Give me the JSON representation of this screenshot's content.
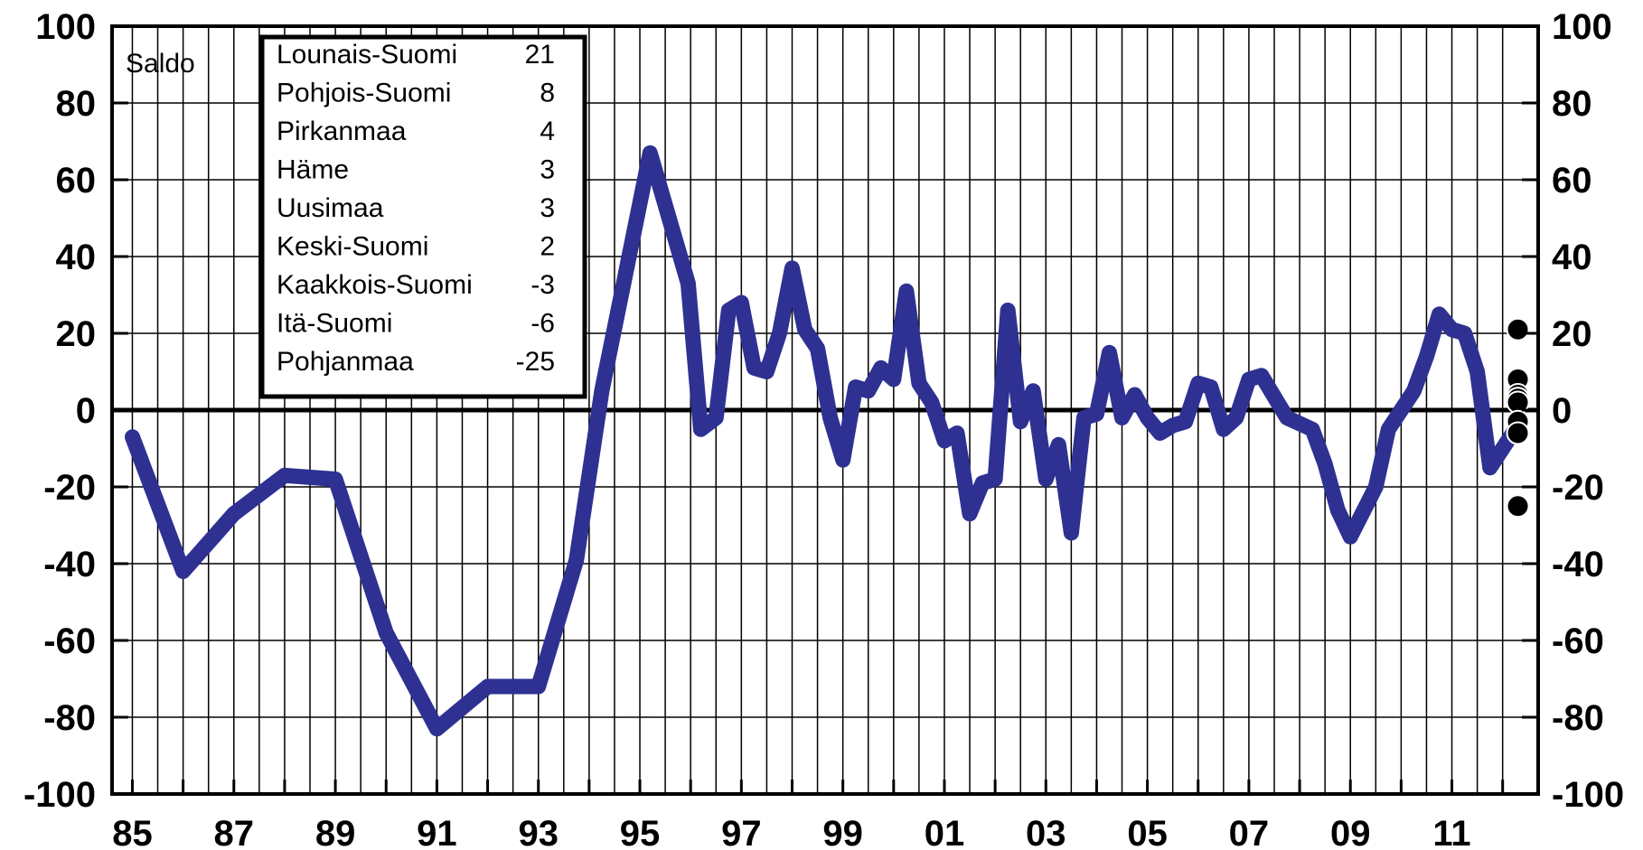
{
  "chart_data": {
    "type": "line",
    "y_unit_label": "Saldo",
    "ylim": [
      -100,
      100
    ],
    "y_ticks": [
      "100",
      "80",
      "60",
      "40",
      "20",
      "0",
      "-20",
      "-40",
      "-60",
      "-80",
      "-100"
    ],
    "x_tick_labels": [
      "85",
      "87",
      "89",
      "91",
      "93",
      "95",
      "97",
      "99",
      "01",
      "03",
      "05",
      "07",
      "09",
      "11"
    ],
    "grid": true,
    "line_color": "#2e3192",
    "series": [
      {
        "points": [
          [
            1985.0,
            -7
          ],
          [
            1986.0,
            -42
          ],
          [
            1987.0,
            -27
          ],
          [
            1988.0,
            -17
          ],
          [
            1989.0,
            -18
          ],
          [
            1990.0,
            -58
          ],
          [
            1991.0,
            -83
          ],
          [
            1992.0,
            -72
          ],
          [
            1993.0,
            -72
          ],
          [
            1993.75,
            -39
          ],
          [
            1994.25,
            5
          ],
          [
            1995.2,
            67
          ],
          [
            1995.95,
            33
          ],
          [
            1996.2,
            -5
          ],
          [
            1996.5,
            -2
          ],
          [
            1996.75,
            26
          ],
          [
            1997.0,
            28
          ],
          [
            1997.25,
            11
          ],
          [
            1997.5,
            10
          ],
          [
            1997.75,
            20
          ],
          [
            1998.0,
            37
          ],
          [
            1998.25,
            21
          ],
          [
            1998.5,
            16
          ],
          [
            1998.75,
            -2
          ],
          [
            1999.0,
            -13
          ],
          [
            1999.25,
            6
          ],
          [
            1999.5,
            5
          ],
          [
            1999.75,
            11
          ],
          [
            2000.0,
            8
          ],
          [
            2000.25,
            31
          ],
          [
            2000.5,
            7
          ],
          [
            2000.75,
            2
          ],
          [
            2001.0,
            -8
          ],
          [
            2001.25,
            -6
          ],
          [
            2001.5,
            -27
          ],
          [
            2001.75,
            -19
          ],
          [
            2002.0,
            -18
          ],
          [
            2002.25,
            26
          ],
          [
            2002.5,
            -3
          ],
          [
            2002.75,
            5
          ],
          [
            2003.0,
            -18
          ],
          [
            2003.25,
            -9
          ],
          [
            2003.5,
            -32
          ],
          [
            2003.75,
            -2
          ],
          [
            2004.0,
            -1
          ],
          [
            2004.25,
            15
          ],
          [
            2004.5,
            -2
          ],
          [
            2004.75,
            4
          ],
          [
            2005.0,
            -2
          ],
          [
            2005.25,
            -6
          ],
          [
            2005.5,
            -4
          ],
          [
            2005.75,
            -3
          ],
          [
            2006.0,
            7
          ],
          [
            2006.25,
            6
          ],
          [
            2006.5,
            -5
          ],
          [
            2006.75,
            -2
          ],
          [
            2007.0,
            8
          ],
          [
            2007.25,
            9
          ],
          [
            2007.75,
            -2
          ],
          [
            2008.25,
            -5
          ],
          [
            2008.5,
            -14
          ],
          [
            2008.75,
            -26
          ],
          [
            2009.0,
            -33
          ],
          [
            2009.5,
            -20
          ],
          [
            2009.75,
            -5
          ],
          [
            2010.0,
            0
          ],
          [
            2010.25,
            5
          ],
          [
            2010.5,
            14
          ],
          [
            2010.75,
            25
          ],
          [
            2011.0,
            21
          ],
          [
            2011.25,
            20
          ],
          [
            2011.5,
            10
          ],
          [
            2011.75,
            -15
          ],
          [
            2012.25,
            -5
          ]
        ]
      }
    ],
    "regional_points_x": 2012.3,
    "dot_color": "#000000",
    "legend": {
      "position": "top-left",
      "entries": [
        {
          "name": "Lounais-Suomi",
          "value": "21"
        },
        {
          "name": "Pohjois-Suomi",
          "value": "8"
        },
        {
          "name": "Pirkanmaa",
          "value": "4"
        },
        {
          "name": "Häme",
          "value": "3"
        },
        {
          "name": "Uusimaa",
          "value": "3"
        },
        {
          "name": "Keski-Suomi",
          "value": "2"
        },
        {
          "name": "Kaakkois-Suomi",
          "value": "-3"
        },
        {
          "name": "Itä-Suomi",
          "value": "-6"
        },
        {
          "name": "Pohjanmaa",
          "value": "-25"
        }
      ]
    }
  }
}
